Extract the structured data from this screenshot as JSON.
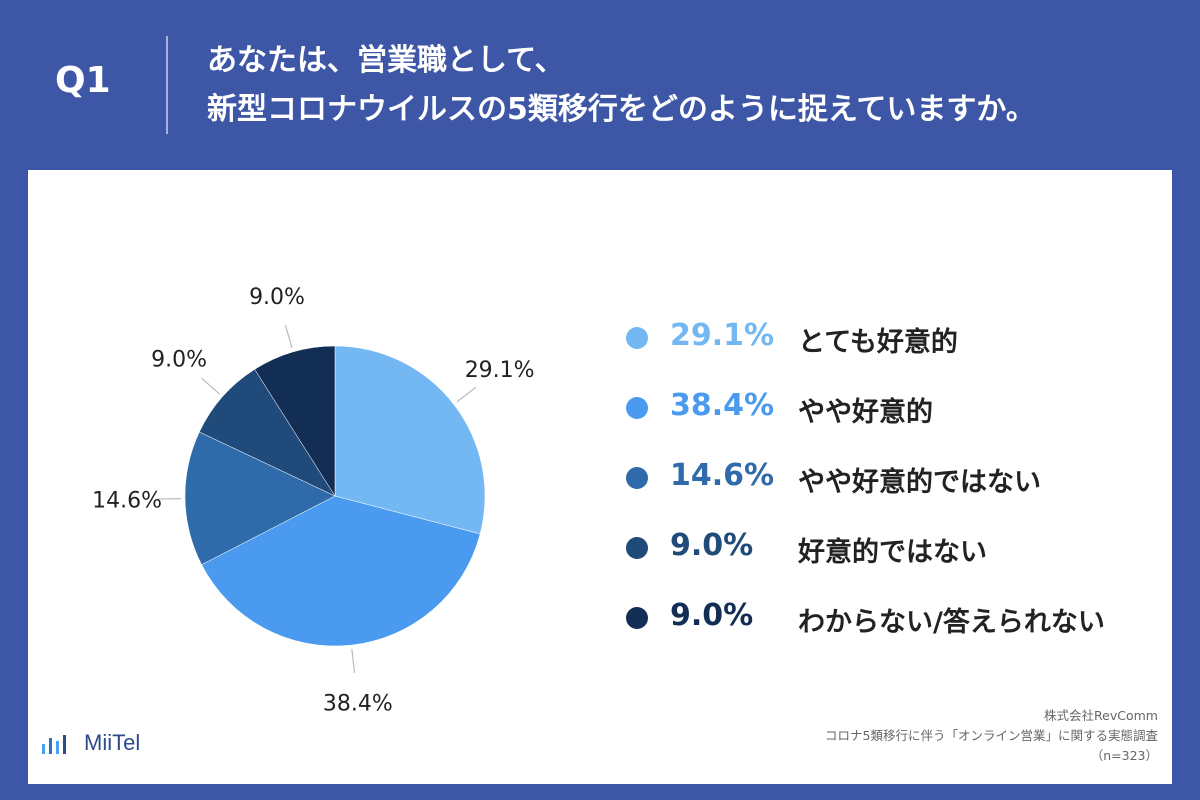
{
  "header": {
    "question_number": "Q1",
    "title_line1": "あなたは、営業職として、",
    "title_line2": "新型コロナウイルスの5類移行をどのように捉えていますか。"
  },
  "chart_data": {
    "type": "pie",
    "slices": [
      {
        "label": "とても好意的",
        "value": 29.1,
        "display": "29.1%",
        "color": "#74b8f3"
      },
      {
        "label": "やや好意的",
        "value": 38.4,
        "display": "38.4%",
        "color": "#4a9bef"
      },
      {
        "label": "やや好意的ではない",
        "value": 14.6,
        "display": "14.6%",
        "color": "#2f6bab"
      },
      {
        "label": "好意的ではない",
        "value": 9.0,
        "display": "9.0%",
        "color": "#1f4a79"
      },
      {
        "label": "わからない/答えられない",
        "value": 9.0,
        "display": "9.0%",
        "color": "#132e55"
      }
    ],
    "start_angle_deg": 0,
    "direction": "clockwise",
    "legend_position": "right"
  },
  "brand": {
    "logo_text": "MiiTel",
    "logo_color": "#2d4a8a"
  },
  "source": {
    "company": "株式会社RevComm",
    "survey": "コロナ5類移行に伴う「オンライン営業」に関する実態調査",
    "sample": "（n=323）"
  },
  "colors": {
    "header_bg": "#3d56a6",
    "panel_bg": "#ffffff"
  }
}
